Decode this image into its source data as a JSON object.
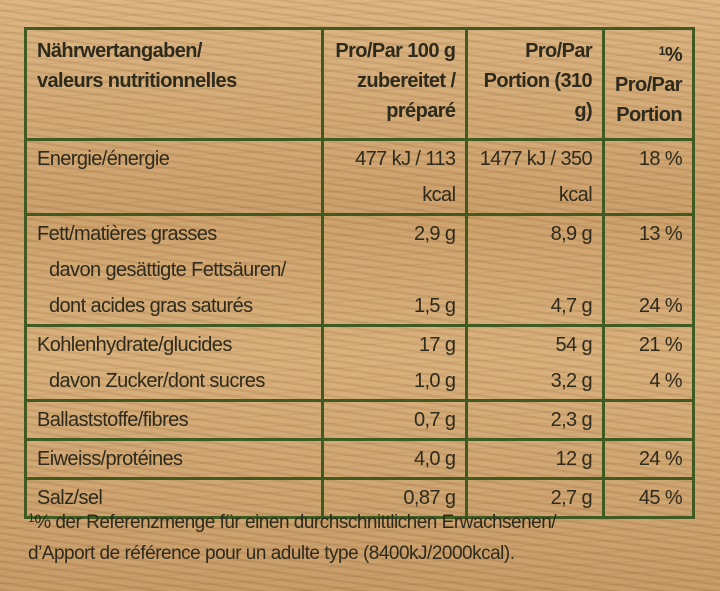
{
  "header": {
    "col1_line1": "Nährwertangaben/",
    "col1_line2": "valeurs nutritionnelles",
    "col2_line1": "Pro/Par 100 g",
    "col2_line2": "zubereitet /",
    "col2_line3": "préparé",
    "col3_line1": "Pro/Par",
    "col3_line2": "Portion (310 g)",
    "col4_sup": "1",
    "col4_line1": "% Pro/Par",
    "col4_line2": "Portion"
  },
  "rows": {
    "energy": {
      "label": "Energie/énergie",
      "per100": "477 kJ / 113 kcal",
      "portion": "1477 kJ / 350 kcal",
      "pct": "18 %"
    },
    "fat": {
      "label": "Fett/matières grasses",
      "per100": "2,9 g",
      "portion": "8,9 g",
      "pct": "13 %"
    },
    "saturates": {
      "label1": "davon gesättigte Fettsäuren/",
      "label2": "dont acides gras saturés",
      "per100": "1,5 g",
      "portion": "4,7 g",
      "pct": "24 %"
    },
    "carbs": {
      "label": "Kohlenhydrate/glucides",
      "per100": "17 g",
      "portion": "54 g",
      "pct": "21 %"
    },
    "sugars": {
      "label": "davon Zucker/dont sucres",
      "per100": "1,0 g",
      "portion": "3,2 g",
      "pct": "4 %"
    },
    "fibre": {
      "label": "Ballaststoffe/fibres",
      "per100": "0,7 g",
      "portion": "2,3 g",
      "pct": ""
    },
    "protein": {
      "label": "Eiweiss/protéines",
      "per100": "4,0 g",
      "portion": "12 g",
      "pct": "24 %"
    },
    "salt": {
      "label": "Salz/sel",
      "per100": "0,87 g",
      "portion": "2,7 g",
      "pct": "45 %"
    }
  },
  "footnote": {
    "sup": "1",
    "line1": "% der Referenzmenge für einen durchschnittlichen Erwachsenen/",
    "line2": "d’Apport de référence pour un adulte type (8400kJ/2000kcal)."
  }
}
